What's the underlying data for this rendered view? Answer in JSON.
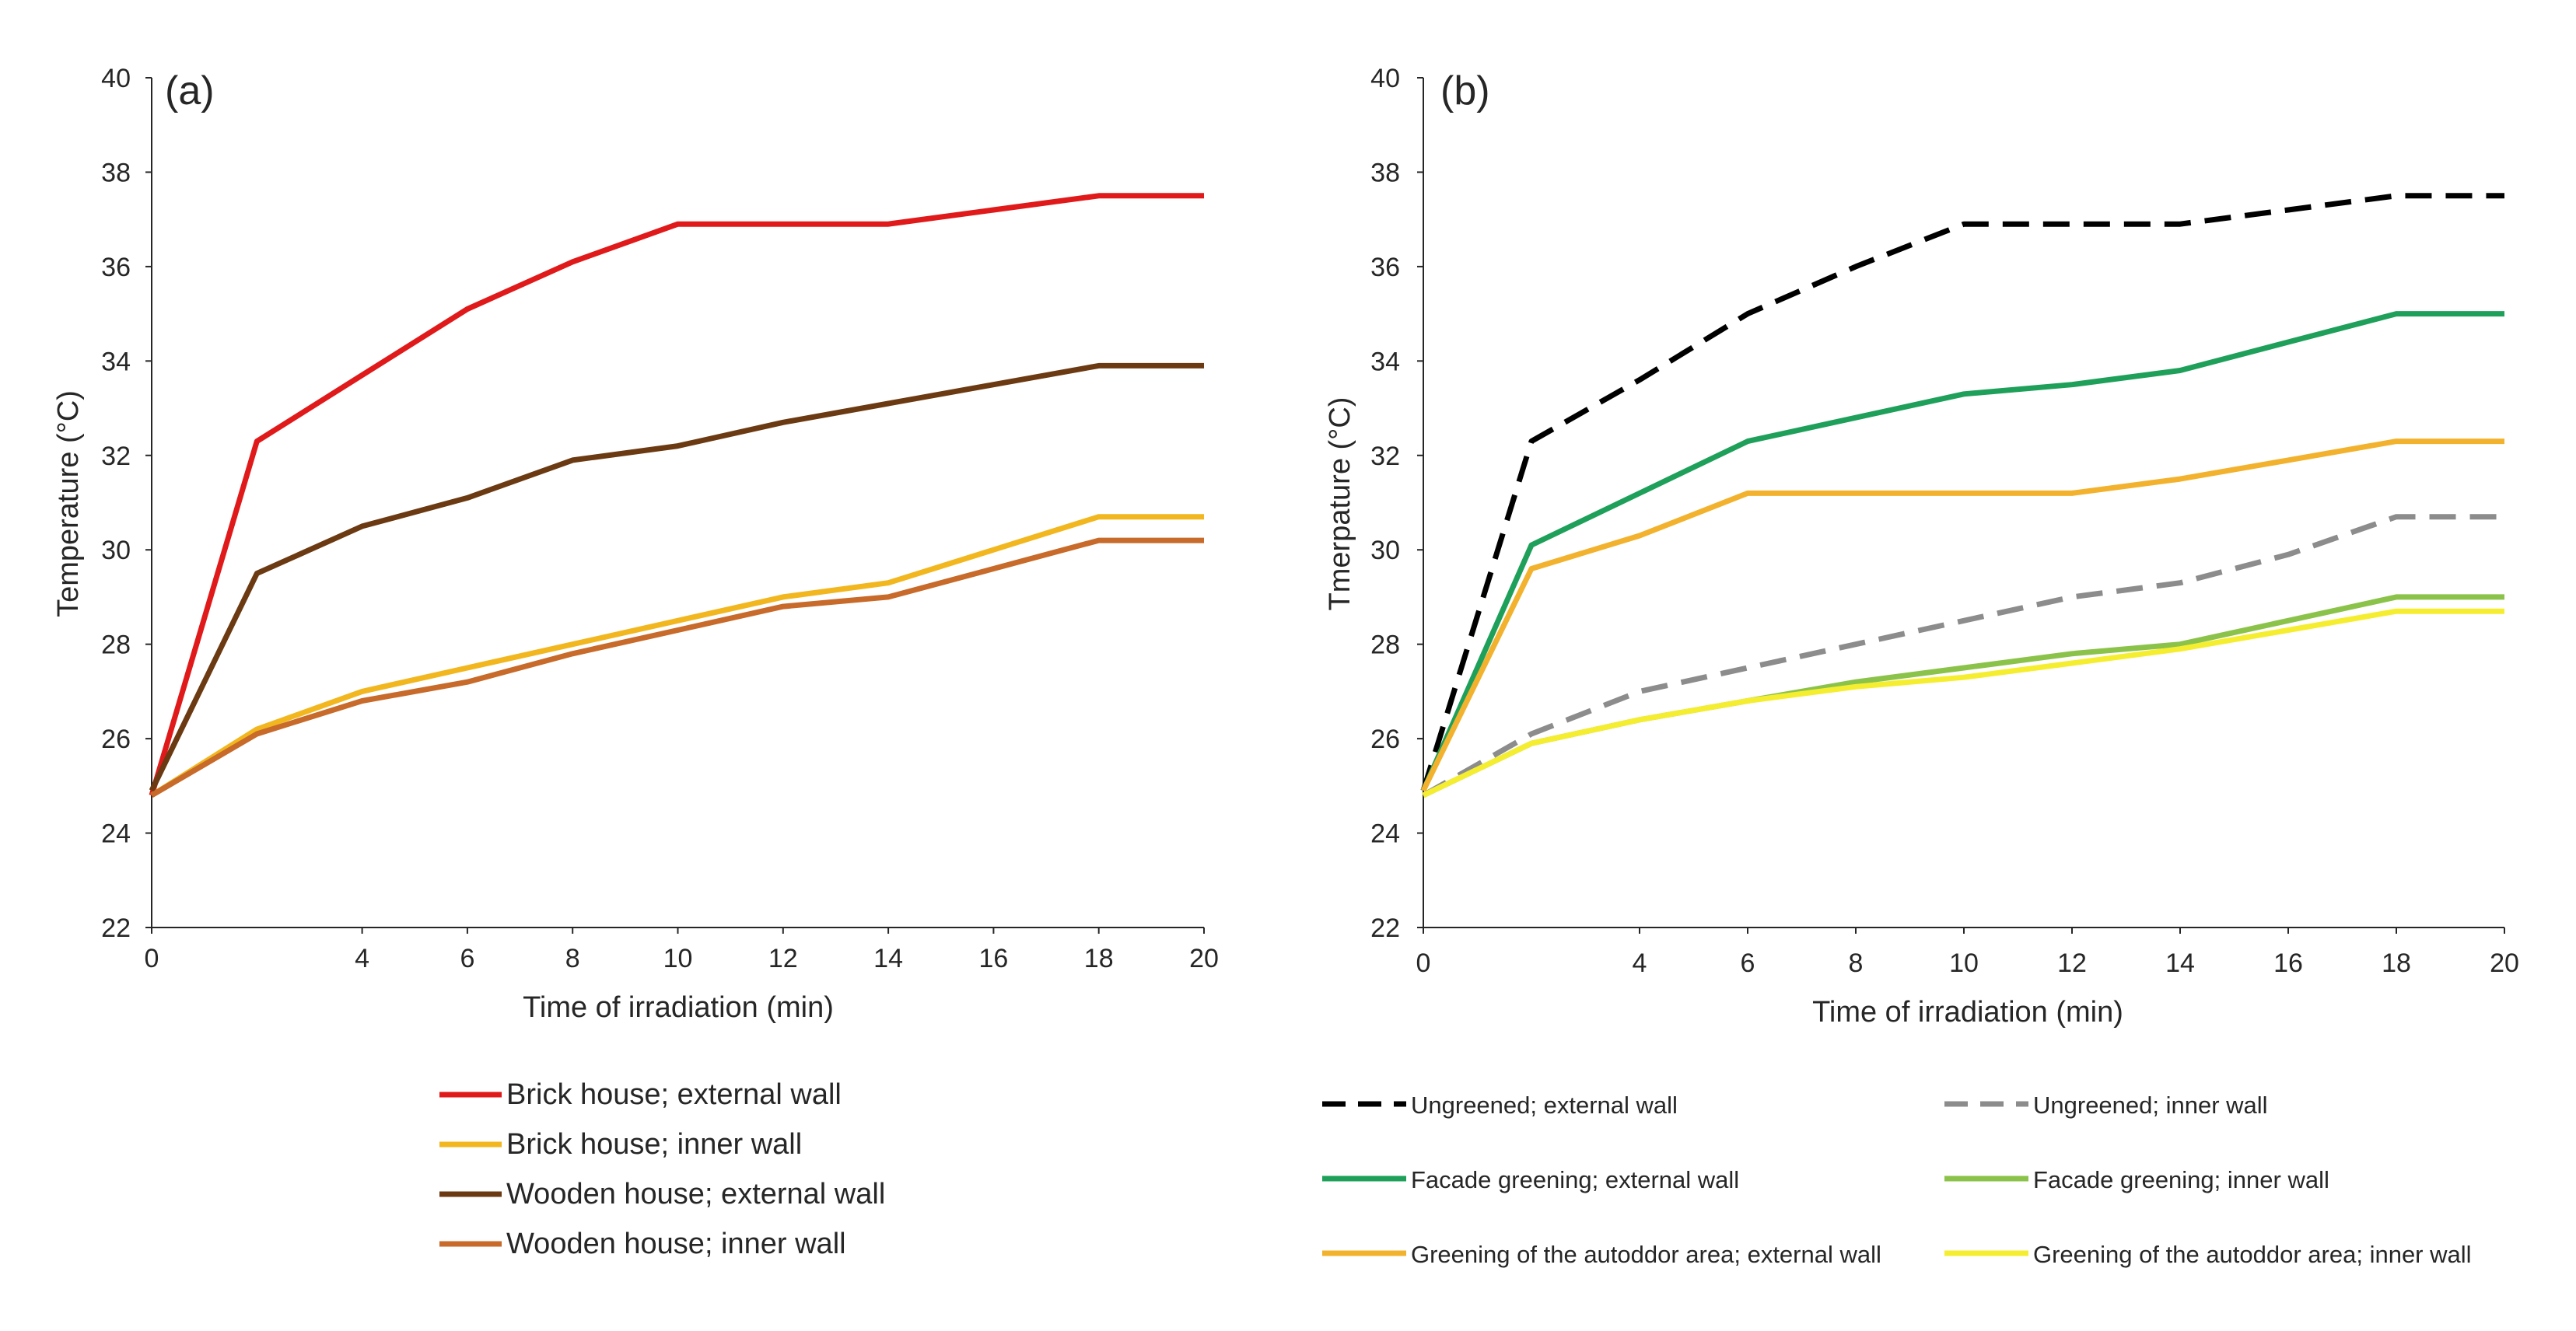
{
  "chart_data": [
    {
      "type": "line",
      "panel_label": "(a)",
      "xlabel": "Time of irradiation (min)",
      "ylabel": "Temperature (°C)",
      "xlim": [
        0,
        20
      ],
      "ylim": [
        22,
        40
      ],
      "xticks": [
        "0",
        "4",
        "6",
        "8",
        "10",
        "12",
        "14",
        "16",
        "18",
        "20"
      ],
      "yticks": [
        "22",
        "24",
        "26",
        "28",
        "30",
        "32",
        "34",
        "36",
        "38",
        "40"
      ],
      "grid": false,
      "legend_position": "below",
      "series": [
        {
          "name": "Brick house; external wall",
          "color": "#e01a1a",
          "dashed": false,
          "x": [
            0,
            2,
            4,
            6,
            8,
            10,
            12,
            14,
            16,
            18,
            20
          ],
          "values": [
            24.8,
            32.3,
            33.7,
            35.1,
            36.1,
            36.9,
            36.9,
            36.9,
            37.2,
            37.5,
            37.5
          ]
        },
        {
          "name": "Brick house; inner wall",
          "color": "#f2b71f",
          "dashed": false,
          "x": [
            0,
            2,
            4,
            6,
            8,
            10,
            12,
            14,
            16,
            18,
            20
          ],
          "values": [
            24.8,
            26.2,
            27.0,
            27.5,
            28.0,
            28.5,
            29.0,
            29.3,
            30.0,
            30.7,
            30.7
          ]
        },
        {
          "name": "Wooden house; external wall",
          "color": "#6b3a12",
          "dashed": false,
          "x": [
            0,
            2,
            4,
            6,
            8,
            10,
            12,
            14,
            16,
            18,
            20
          ],
          "values": [
            24.9,
            29.5,
            30.5,
            31.1,
            31.9,
            32.2,
            32.7,
            33.1,
            33.5,
            33.9,
            33.9
          ]
        },
        {
          "name": "Wooden house; inner wall",
          "color": "#c76a2a",
          "dashed": false,
          "x": [
            0,
            2,
            4,
            6,
            8,
            10,
            12,
            14,
            16,
            18,
            20
          ],
          "values": [
            24.8,
            26.1,
            26.8,
            27.2,
            27.8,
            28.3,
            28.8,
            29.0,
            29.6,
            30.2,
            30.2
          ]
        }
      ]
    },
    {
      "type": "line",
      "panel_label": "(b)",
      "xlabel": "Time of irradiation (min)",
      "ylabel": "Tmerpature (°C)",
      "xlim": [
        0,
        20
      ],
      "ylim": [
        22,
        40
      ],
      "xticks": [
        "0",
        "4",
        "6",
        "8",
        "10",
        "12",
        "14",
        "16",
        "18",
        "20"
      ],
      "yticks": [
        "22",
        "24",
        "26",
        "28",
        "30",
        "32",
        "34",
        "36",
        "38",
        "40"
      ],
      "grid": false,
      "legend_position": "below",
      "series": [
        {
          "name": "Ungreened; external wall",
          "color": "#000000",
          "dashed": true,
          "x": [
            0,
            2,
            4,
            6,
            8,
            10,
            12,
            14,
            16,
            18,
            20
          ],
          "values": [
            24.9,
            32.3,
            33.6,
            35.0,
            36.0,
            36.9,
            36.9,
            36.9,
            37.2,
            37.5,
            37.5
          ]
        },
        {
          "name": "Ungreened; inner wall",
          "color": "#8c8c8c",
          "dashed": true,
          "x": [
            0,
            2,
            4,
            6,
            8,
            10,
            12,
            14,
            16,
            18,
            20
          ],
          "values": [
            24.8,
            26.1,
            27.0,
            27.5,
            28.0,
            28.5,
            29.0,
            29.3,
            29.9,
            30.7,
            30.7
          ]
        },
        {
          "name": "Facade greening; external wall",
          "color": "#1fa05a",
          "dashed": false,
          "x": [
            0,
            2,
            4,
            6,
            8,
            10,
            12,
            14,
            16,
            18,
            20
          ],
          "values": [
            24.9,
            30.1,
            31.2,
            32.3,
            32.8,
            33.3,
            33.5,
            33.8,
            34.4,
            35.0,
            35.0
          ]
        },
        {
          "name": "Facade greening; inner wall",
          "color": "#8bc34a",
          "dashed": false,
          "x": [
            0,
            2,
            4,
            6,
            8,
            10,
            12,
            14,
            16,
            18,
            20
          ],
          "values": [
            24.8,
            25.9,
            26.4,
            26.8,
            27.2,
            27.5,
            27.8,
            28.0,
            28.5,
            29.0,
            29.0
          ]
        },
        {
          "name": "Greening of the autoddor area; external wall",
          "color": "#f2b22d",
          "dashed": false,
          "x": [
            0,
            2,
            4,
            6,
            8,
            10,
            12,
            14,
            16,
            18,
            20
          ],
          "values": [
            24.9,
            29.6,
            30.3,
            31.2,
            31.2,
            31.2,
            31.2,
            31.5,
            31.9,
            32.3,
            32.3
          ]
        },
        {
          "name": "Greening of the autoddor area; inner wall",
          "color": "#f5ee30",
          "dashed": false,
          "x": [
            0,
            2,
            4,
            6,
            8,
            10,
            12,
            14,
            16,
            18,
            20
          ],
          "values": [
            24.8,
            25.9,
            26.4,
            26.8,
            27.1,
            27.3,
            27.6,
            27.9,
            28.3,
            28.7,
            28.7
          ]
        }
      ]
    }
  ]
}
